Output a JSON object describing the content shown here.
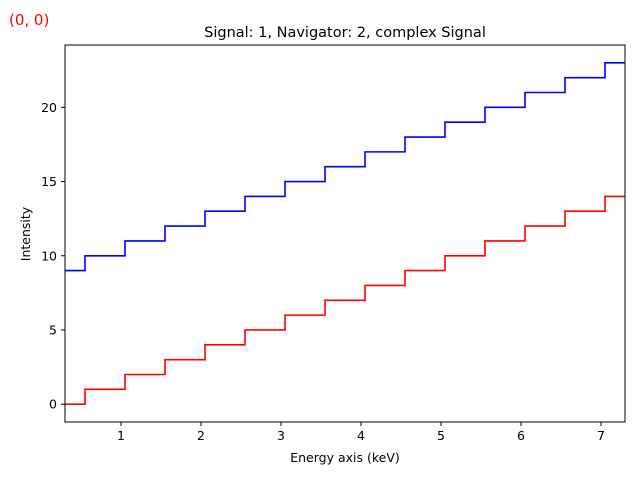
{
  "coordinate_readout": "(0, 0)",
  "colors": {
    "coordinate_readout": "#ff0000"
  },
  "chart_data": {
    "type": "line",
    "drawstyle": "steps-mid",
    "title": "Signal: 1, Navigator: 2, complex Signal",
    "xlabel": "Energy axis (keV)",
    "ylabel": "Intensity",
    "xlim": [
      0.3,
      7.3
    ],
    "ylim": [
      -1.2,
      24.2
    ],
    "xticks": [
      1,
      2,
      3,
      4,
      5,
      6,
      7
    ],
    "yticks": [
      0,
      5,
      10,
      15,
      20
    ],
    "grid": false,
    "legend": "none",
    "x": [
      0.3,
      0.8,
      1.3,
      1.8,
      2.3,
      2.8,
      3.3,
      3.8,
      4.3,
      4.8,
      5.3,
      5.8,
      6.3,
      6.8,
      7.3
    ],
    "series": [
      {
        "color": "#0000ff",
        "values": [
          9,
          10,
          11,
          12,
          13,
          14,
          15,
          16,
          17,
          18,
          19,
          20,
          21,
          22,
          23
        ]
      },
      {
        "color": "#ff0000",
        "values": [
          0,
          1,
          2,
          3,
          4,
          5,
          6,
          7,
          8,
          9,
          10,
          11,
          12,
          13,
          14
        ]
      }
    ]
  }
}
